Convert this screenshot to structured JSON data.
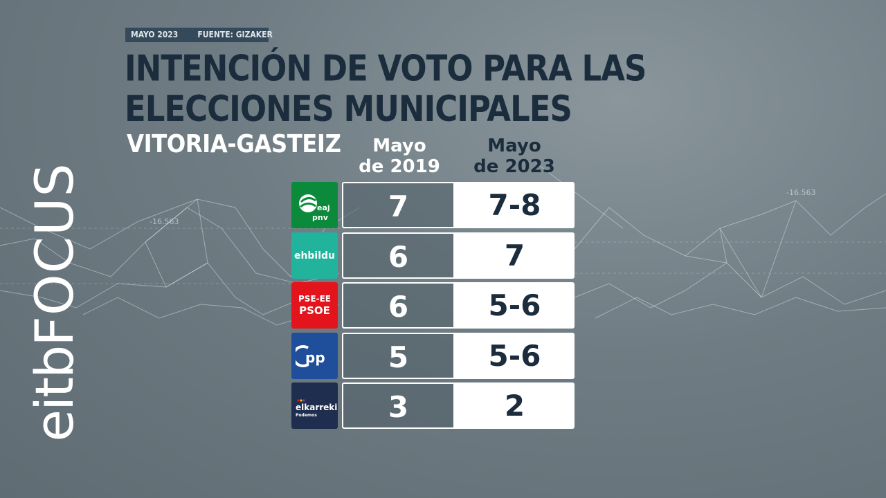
{
  "header": {
    "date": "MAYO 2023",
    "source": "FUENTE: GIZAKER",
    "title": "INTENCIÓN DE VOTO PARA LAS ELECCIONES MUNICIPALES",
    "city": "VITORIA-GASTEIZ"
  },
  "columns": {
    "y2019": "Mayo de 2019",
    "y2023": "Mayo de 2023"
  },
  "brand": {
    "channel": "eitb",
    "program": "FOCUS"
  },
  "watermark_numbers": [
    "-16.563",
    "-16.563"
  ],
  "parties": [
    {
      "logo_icon": "eaj-pnv-logo",
      "logo_text": "eaj pnv",
      "color": "#0b8a3c"
    },
    {
      "logo_icon": "ehbildu-logo",
      "logo_text": "ehbildu",
      "color": "#21b39b"
    },
    {
      "logo_icon": "pse-ee-psoe-logo",
      "logo_text": "PSE-EE PSOE",
      "color": "#e3141b"
    },
    {
      "logo_icon": "pp-logo",
      "logo_text": "PP",
      "color": "#1f4e9a"
    },
    {
      "logo_icon": "elkarrekin-podemos-logo",
      "logo_text": "elkarrekin Podemos",
      "color": "#1f2d4f"
    }
  ],
  "chart_data": {
    "type": "table",
    "title": "INTENCIÓN DE VOTO PARA LAS ELECCIONES MUNICIPALES",
    "subtitle": "VITORIA-GASTEIZ",
    "columns": [
      "Mayo de 2019",
      "Mayo de 2023"
    ],
    "rows": [
      {
        "party": "EAJ-PNV",
        "mayo_2019": "7",
        "mayo_2023": "7-8"
      },
      {
        "party": "EH Bildu",
        "mayo_2019": "6",
        "mayo_2023": "7"
      },
      {
        "party": "PSE-EE PSOE",
        "mayo_2019": "6",
        "mayo_2023": "5-6"
      },
      {
        "party": "PP",
        "mayo_2019": "5",
        "mayo_2023": "5-6"
      },
      {
        "party": "Elkarrekin Podemos",
        "mayo_2019": "3",
        "mayo_2023": "2"
      }
    ]
  }
}
